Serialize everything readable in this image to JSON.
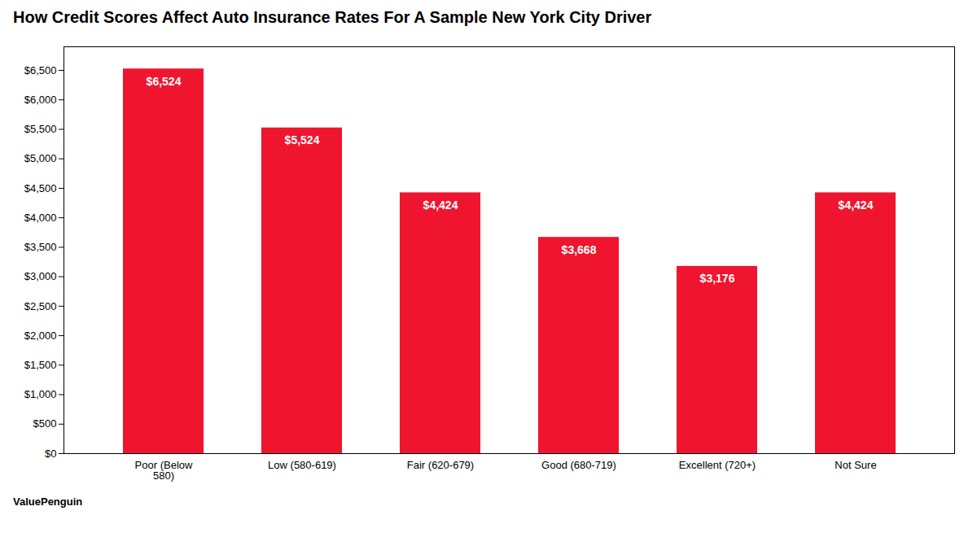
{
  "chart_data": {
    "type": "bar",
    "title": "How Credit Scores Affect Auto Insurance  Rates For A Sample New York City Driver",
    "categories": [
      "Poor (Below\n580)",
      "Low (580-619)",
      "Fair (620-679)",
      "Good (680-719)",
      "Excellent (720+)",
      "Not Sure"
    ],
    "values": [
      6524,
      5524,
      4424,
      3668,
      3176,
      4424
    ],
    "value_labels": [
      "$6,524",
      "$5,524",
      "$4,424",
      "$3,668",
      "$3,176",
      "$4,424"
    ],
    "data_labels": true,
    "color": "#f0152f",
    "ylim": [
      0,
      6900
    ],
    "yticks": [
      {
        "value": 0,
        "label": "$0"
      },
      {
        "value": 500,
        "label": "$500"
      },
      {
        "value": 1000,
        "label": "$1,000"
      },
      {
        "value": 1500,
        "label": "$1,500"
      },
      {
        "value": 2000,
        "label": "$2,000"
      },
      {
        "value": 2500,
        "label": "$2,500"
      },
      {
        "value": 3000,
        "label": "$3,000"
      },
      {
        "value": 3500,
        "label": "$3,500"
      },
      {
        "value": 4000,
        "label": "$4,000"
      },
      {
        "value": 4500,
        "label": "$4,500"
      },
      {
        "value": 5000,
        "label": "$5,000"
      },
      {
        "value": 5500,
        "label": "$5,500"
      },
      {
        "value": 6000,
        "label": "$6,000"
      },
      {
        "value": 6500,
        "label": "$6,500"
      }
    ],
    "grid": false,
    "annotations": [
      "ValuePenguin"
    ]
  }
}
